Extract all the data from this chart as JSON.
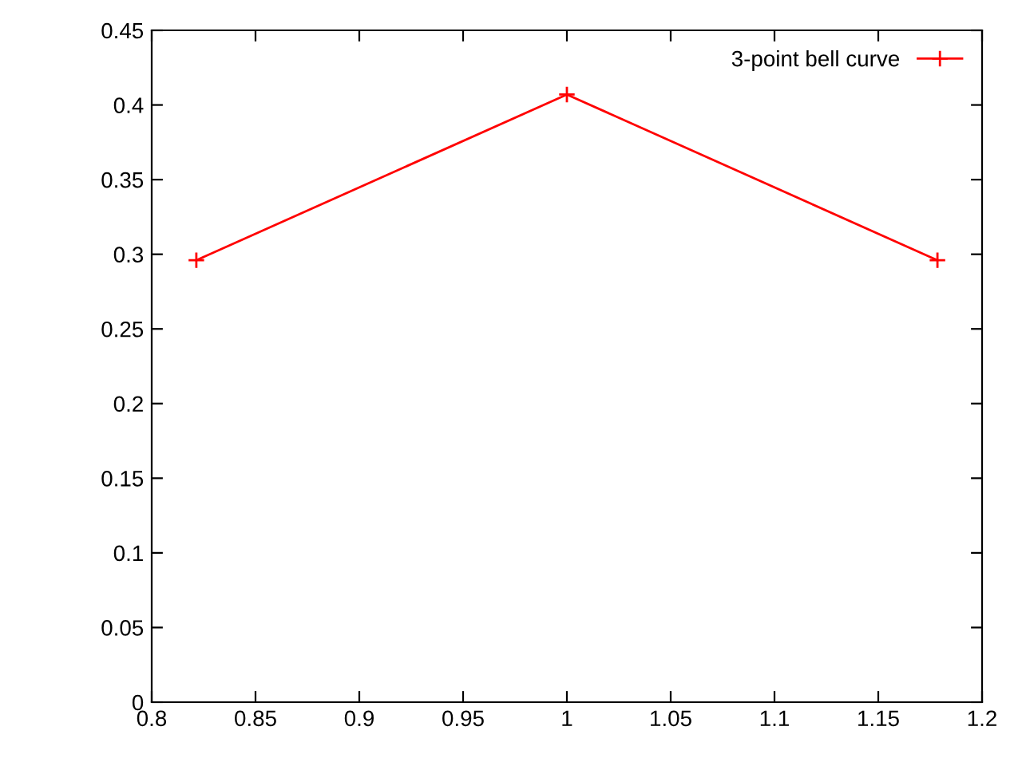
{
  "chart_data": {
    "type": "line",
    "x": [
      0.8215,
      1,
      1.1785
    ],
    "series": [
      {
        "name": "3-point bell curve",
        "color": "#ff0000",
        "values": [
          0.296,
          0.407,
          0.296
        ]
      }
    ],
    "xlim": [
      0.8,
      1.2
    ],
    "xticks": [
      0.8,
      0.85,
      0.9,
      0.95,
      1,
      1.05,
      1.1,
      1.15,
      1.2
    ],
    "ylim": [
      0,
      0.45
    ],
    "yticks": [
      0,
      0.05,
      0.1,
      0.15,
      0.2,
      0.25,
      0.3,
      0.35,
      0.4,
      0.45
    ],
    "grid": false,
    "legend": "top right",
    "marker": "cross",
    "line_style": "solid"
  }
}
